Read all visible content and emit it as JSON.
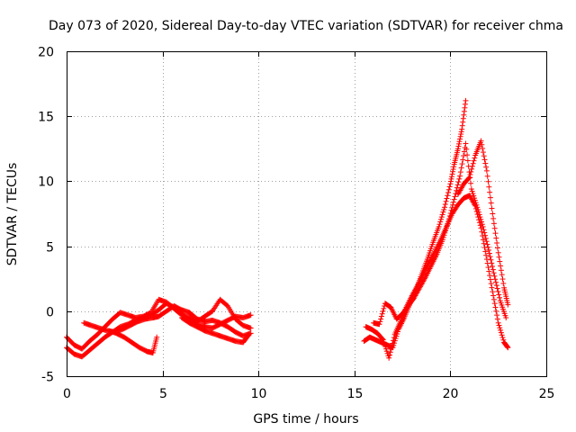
{
  "chart_data": {
    "type": "scatter",
    "title": "Day 073 of 2020, Sidereal Day-to-day VTEC variation (SDTVAR) for receiver chma",
    "xlabel": "GPS time / hours",
    "ylabel": "SDTVAR / TECUs",
    "xlim": [
      0,
      25
    ],
    "ylim": [
      -5,
      20
    ],
    "xticks": [
      0,
      5,
      10,
      15,
      20,
      25
    ],
    "yticks": [
      -5,
      0,
      5,
      10,
      15,
      20
    ],
    "xtick_labels": [
      "0",
      "5",
      "10",
      "15",
      "20",
      "25"
    ],
    "ytick_labels": [
      "-5",
      "0",
      "5",
      "10",
      "15",
      "20"
    ],
    "grid": true,
    "marker": "plus",
    "color": "#ff0000",
    "series": [
      {
        "name": "track-1",
        "x": [
          0.0,
          0.4,
          0.8,
          1.2,
          1.6,
          2.0,
          2.4,
          2.8,
          3.2,
          3.6,
          4.0,
          4.4,
          4.8,
          5.2,
          5.6,
          6.0,
          6.4,
          6.8,
          7.2,
          7.6,
          8.0,
          8.4,
          8.8,
          9.2,
          9.6
        ],
        "y": [
          -2.8,
          -3.3,
          -3.5,
          -3.0,
          -2.5,
          -2.0,
          -1.6,
          -1.2,
          -1.0,
          -0.7,
          -0.5,
          -0.3,
          0.1,
          0.6,
          0.3,
          -0.2,
          -0.7,
          -1.0,
          -1.2,
          -1.3,
          -1.0,
          -0.7,
          -0.4,
          -0.5,
          -0.3
        ]
      },
      {
        "name": "track-2",
        "x": [
          0.0,
          0.4,
          0.8,
          1.2,
          1.6,
          2.0,
          2.4,
          2.8,
          3.2,
          3.6,
          4.0,
          4.4,
          4.8,
          5.2,
          5.6,
          6.0,
          6.4,
          6.8,
          7.2,
          7.6,
          8.0,
          8.4,
          8.8,
          9.2,
          9.6
        ],
        "y": [
          -2.0,
          -2.6,
          -2.9,
          -2.3,
          -1.8,
          -1.2,
          -0.6,
          -0.1,
          -0.3,
          -0.5,
          -0.4,
          -0.1,
          0.9,
          0.7,
          0.2,
          -0.3,
          -0.5,
          -0.8,
          -0.4,
          0.0,
          0.9,
          0.4,
          -0.6,
          -1.1,
          -1.3
        ]
      },
      {
        "name": "track-3",
        "x": [
          0.9,
          1.3,
          1.7,
          2.1,
          2.5,
          2.9,
          3.3,
          3.7,
          4.1,
          4.5,
          4.8,
          5.2,
          5.6,
          6.0,
          6.4,
          6.8,
          7.2,
          7.6,
          8.0,
          8.4,
          8.8,
          9.2,
          9.6
        ],
        "y": [
          -0.9,
          -1.1,
          -1.3,
          -1.5,
          -1.6,
          -1.4,
          -1.1,
          -0.8,
          -0.6,
          -0.5,
          -0.4,
          0.0,
          0.4,
          0.1,
          -0.1,
          -0.6,
          -0.8,
          -0.7,
          -0.9,
          -1.2,
          -1.6,
          -1.9,
          -1.7
        ]
      },
      {
        "name": "track-4",
        "x": [
          2.2,
          2.6,
          3.0,
          3.4,
          3.8,
          4.2,
          4.5,
          4.7
        ],
        "y": [
          -1.5,
          -1.7,
          -2.0,
          -2.4,
          -2.8,
          -3.1,
          -3.2,
          -2.0
        ]
      },
      {
        "name": "track-5",
        "x": [
          6.0,
          6.4,
          6.8,
          7.2,
          7.6,
          8.0,
          8.4,
          8.8,
          9.2,
          9.5
        ],
        "y": [
          -0.5,
          -0.9,
          -1.2,
          -1.5,
          -1.7,
          -1.9,
          -2.1,
          -2.3,
          -2.4,
          -1.8
        ]
      },
      {
        "name": "track-6",
        "x": [
          15.5,
          15.8,
          16.1,
          16.4,
          16.7,
          17.0,
          17.3,
          17.6,
          17.9,
          18.2,
          18.5,
          18.8,
          19.1,
          19.4,
          19.7,
          20.0,
          20.2,
          20.4,
          20.6,
          20.8
        ],
        "y": [
          -2.3,
          -2.0,
          -2.2,
          -2.4,
          -2.6,
          -2.8,
          -1.4,
          -0.5,
          0.6,
          1.6,
          2.8,
          4.0,
          5.3,
          6.5,
          8.0,
          9.8,
          11.3,
          12.5,
          14.0,
          16.2
        ]
      },
      {
        "name": "track-7",
        "x": [
          15.6,
          15.9,
          16.2,
          16.5,
          16.8,
          17.1,
          17.4,
          17.7,
          18.0,
          18.3,
          18.6,
          18.9,
          19.2,
          19.5,
          19.8,
          20.1,
          20.4,
          20.7,
          21.0,
          21.3,
          21.6,
          21.9,
          22.2,
          22.5,
          22.8,
          23.0
        ],
        "y": [
          -1.2,
          -1.4,
          -1.7,
          -2.2,
          -3.6,
          -1.8,
          -0.8,
          0.3,
          1.2,
          2.0,
          2.9,
          3.8,
          4.6,
          5.5,
          6.5,
          7.5,
          8.2,
          8.7,
          8.9,
          8.1,
          6.4,
          4.0,
          1.5,
          -0.9,
          -2.4,
          -2.8
        ]
      },
      {
        "name": "track-8",
        "x": [
          16.0,
          16.3,
          16.6,
          16.9,
          17.2,
          17.5,
          17.8,
          18.1,
          18.4,
          18.7,
          19.0,
          19.3,
          19.6,
          19.9,
          20.2,
          20.5,
          20.8,
          21.1,
          21.4,
          21.7,
          22.0,
          22.3,
          22.6,
          22.9
        ],
        "y": [
          -0.9,
          -1.0,
          0.6,
          0.3,
          -0.6,
          -0.2,
          0.4,
          1.0,
          1.8,
          2.6,
          3.5,
          4.4,
          5.5,
          6.9,
          8.6,
          10.4,
          12.9,
          9.4,
          8.0,
          6.5,
          4.7,
          2.7,
          0.8,
          -0.5
        ]
      },
      {
        "name": "track-9",
        "x": [
          20.4,
          20.7,
          21.0,
          21.3,
          21.6,
          21.9,
          22.2,
          22.5,
          22.8,
          23.0
        ],
        "y": [
          9.0,
          9.8,
          10.3,
          12.0,
          13.1,
          10.8,
          7.5,
          4.5,
          1.8,
          0.5
        ]
      }
    ]
  }
}
